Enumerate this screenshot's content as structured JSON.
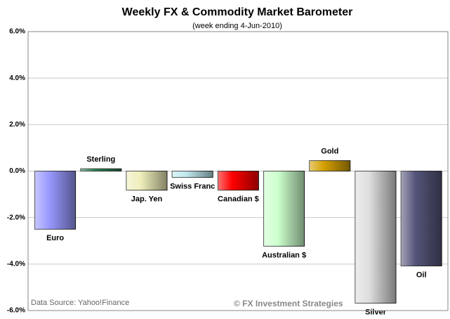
{
  "chart_data": {
    "type": "bar",
    "title": "Weekly FX & Commodity Market Barometer",
    "subtitle": "(week ending 4-Jun-2010)",
    "source": "Data Source: Yahoo!Finance",
    "watermark": "© FX Investment Strategies",
    "categories": [
      "Euro",
      "Sterling",
      "Jap. Yen",
      "Swiss Franc",
      "Canadian $",
      "Australian $",
      "Gold",
      "Silver",
      "Oil"
    ],
    "values": [
      -2.5,
      0.1,
      -0.82,
      -0.27,
      -0.82,
      -3.23,
      0.45,
      -5.68,
      -4.08
    ],
    "colors": [
      "#9999ff",
      "#2e8b57",
      "#eeeebb",
      "#bfe8ee",
      "#ff0000",
      "#ccffcc",
      "#d4a000",
      "#dddddd",
      "#55557a"
    ],
    "ylim": [
      -6,
      6
    ],
    "yticks": [
      {
        "value": -6,
        "label": "-6.0%"
      },
      {
        "value": -4,
        "label": "-4.0%"
      },
      {
        "value": -2,
        "label": "-2.0%"
      },
      {
        "value": 0,
        "label": "0.0%"
      },
      {
        "value": 2,
        "label": "2.0%"
      },
      {
        "value": 4,
        "label": "4.0%"
      },
      {
        "value": 6,
        "label": "6.0%"
      }
    ],
    "grid": true
  }
}
